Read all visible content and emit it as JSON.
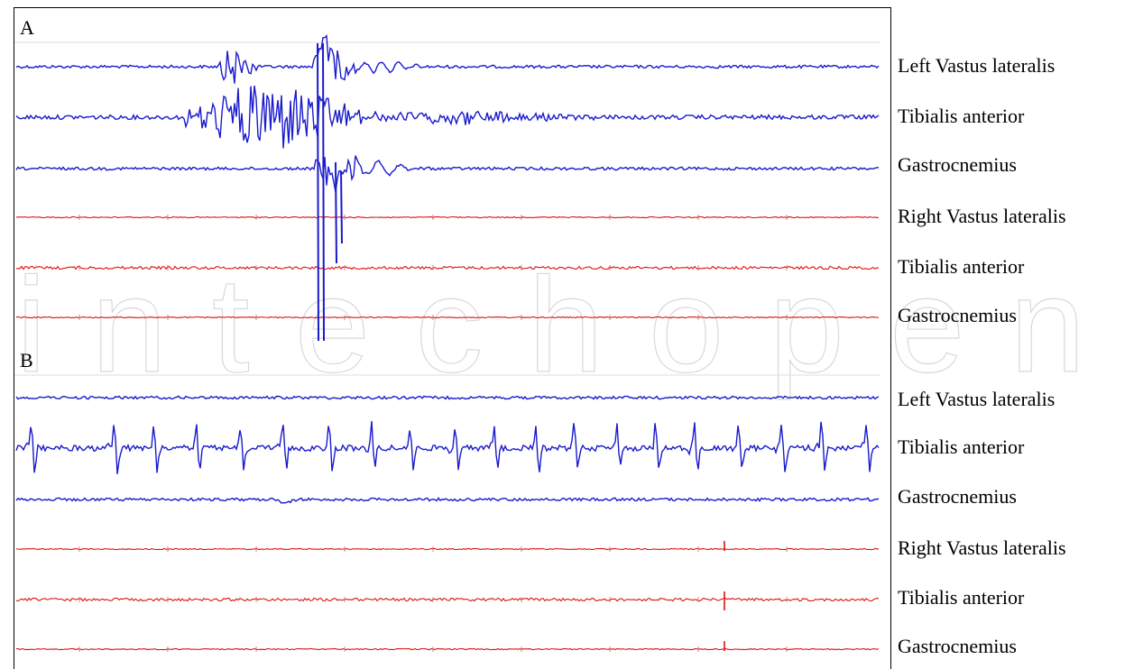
{
  "chart_data": [
    {
      "type": "line",
      "panel": "A",
      "series": [
        {
          "name": "Left Vastus lateralis",
          "group": "Left",
          "color": "#1a1acc",
          "baseline_noise": "low",
          "activity": "burst"
        },
        {
          "name": "Tibialis anterior",
          "group": "Left",
          "color": "#1a1acc",
          "baseline_noise": "medium",
          "activity": "burst"
        },
        {
          "name": "Gastrocnemius",
          "group": "Left",
          "color": "#1a1acc",
          "baseline_noise": "low",
          "activity": "burst"
        },
        {
          "name": "Right Vastus lateralis",
          "group": "Right",
          "color": "#dd1111",
          "baseline_noise": "flat",
          "activity": "none"
        },
        {
          "name": "Tibialis anterior",
          "group": "Right",
          "color": "#dd1111",
          "baseline_noise": "low",
          "activity": "none"
        },
        {
          "name": "Gastrocnemius",
          "group": "Right",
          "color": "#dd1111",
          "baseline_noise": "flat",
          "activity": "none"
        }
      ]
    },
    {
      "type": "line",
      "panel": "B",
      "series": [
        {
          "name": "Left Vastus lateralis",
          "group": "Left",
          "color": "#1a1acc",
          "baseline_noise": "low",
          "activity": "none"
        },
        {
          "name": "Tibialis anterior",
          "group": "Left",
          "color": "#1a1acc",
          "baseline_noise": "high",
          "activity": "rhythmic"
        },
        {
          "name": "Gastrocnemius",
          "group": "Left",
          "color": "#1a1acc",
          "baseline_noise": "low",
          "activity": "none"
        },
        {
          "name": "Right Vastus lateralis",
          "group": "Right",
          "color": "#dd1111",
          "baseline_noise": "flat",
          "activity": "none"
        },
        {
          "name": "Tibialis anterior",
          "group": "Right",
          "color": "#dd1111",
          "baseline_noise": "low",
          "activity": "none"
        },
        {
          "name": "Gastrocnemius",
          "group": "Right",
          "color": "#dd1111",
          "baseline_noise": "flat",
          "activity": "none"
        }
      ]
    }
  ],
  "panels": {
    "a": {
      "letter": "A"
    },
    "b": {
      "letter": "B"
    }
  },
  "labels": {
    "a": [
      "Left Vastus lateralis",
      "Tibialis anterior",
      "Gastrocnemius",
      "Right Vastus lateralis",
      "Tibialis anterior",
      "Gastrocnemius"
    ],
    "b": [
      "Left Vastus lateralis",
      "Tibialis anterior",
      "Gastrocnemius",
      "Right Vastus lateralis",
      "Tibialis anterior",
      "Gastrocnemius"
    ]
  },
  "watermark": {
    "text": "intechopen",
    "color": "#bfbfbf"
  }
}
